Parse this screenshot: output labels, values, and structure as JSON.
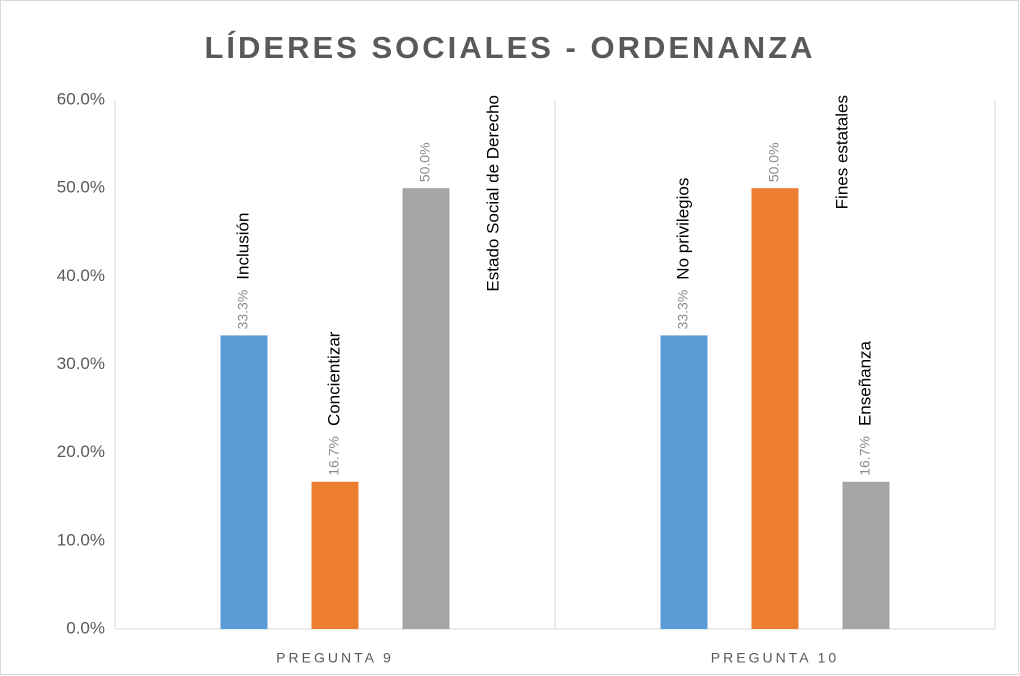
{
  "chart_data": {
    "type": "bar",
    "title": "LÍDERES SOCIALES - ORDENANZA",
    "categories": [
      "PREGUNTA 9",
      "PREGUNTA 10"
    ],
    "series": [
      {
        "color": "#5b9bd5",
        "values": [
          33.3,
          33.3
        ],
        "value_labels": [
          "33.3%",
          "33.3%"
        ],
        "bar_labels": [
          "Inclusión",
          "No privilegios"
        ]
      },
      {
        "color": "#ed7d31",
        "values": [
          16.7,
          50.0
        ],
        "value_labels": [
          "16.7%",
          "50.0%"
        ],
        "bar_labels": [
          "Concientizar",
          "Fines estatales"
        ]
      },
      {
        "color": "#a5a5a5",
        "values": [
          50.0,
          16.7
        ],
        "value_labels": [
          "50.0%",
          "16.7%"
        ],
        "bar_labels": [
          "Estado Social de Derecho",
          "Enseñanza"
        ]
      }
    ],
    "ylim": [
      0,
      60
    ],
    "yticks": [
      {
        "value": 0,
        "label": "0.0%"
      },
      {
        "value": 10,
        "label": "10.0%"
      },
      {
        "value": 20,
        "label": "20.0%"
      },
      {
        "value": 30,
        "label": "30.0%"
      },
      {
        "value": 40,
        "label": "40.0%"
      },
      {
        "value": 50,
        "label": "50.0%"
      },
      {
        "value": 60,
        "label": "60.0%"
      }
    ],
    "grid": false
  }
}
